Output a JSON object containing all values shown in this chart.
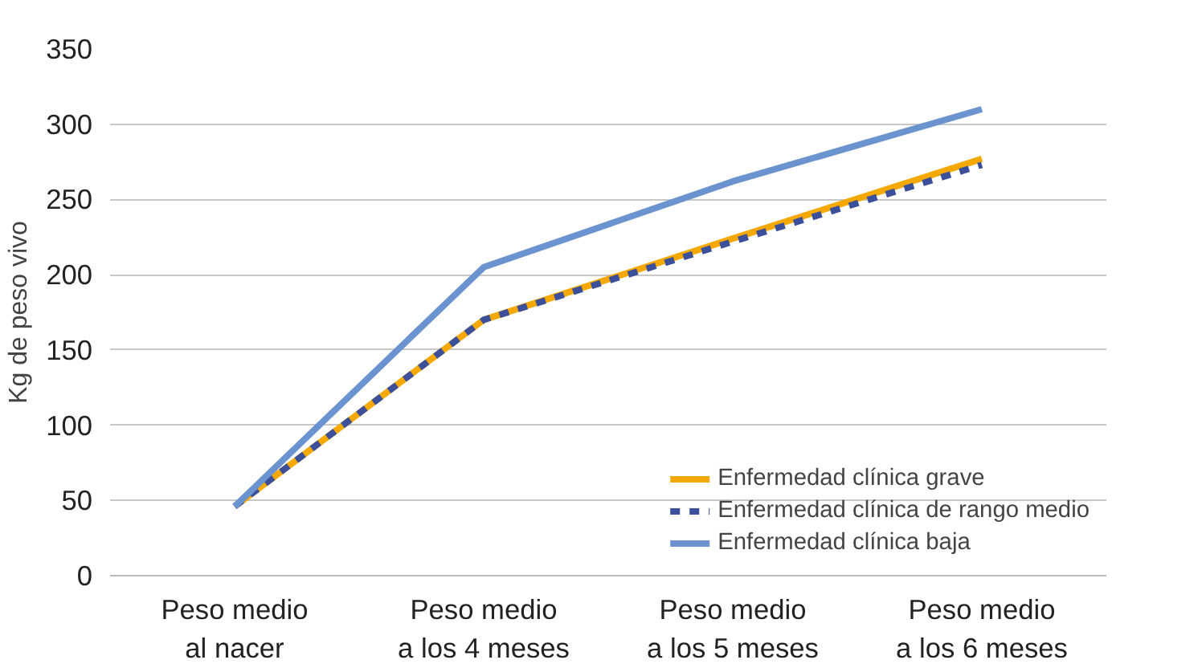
{
  "chart_data": {
    "type": "line",
    "ylabel": "Kg de peso vivo",
    "categories": [
      "Peso medio\nal nacer",
      "Peso medio\na los 4 meses",
      "Peso medio\na los 5 meses",
      "Peso medio\na los 6 meses"
    ],
    "series": [
      {
        "name": "Enfermedad clínica grave",
        "color": "#f5a800",
        "values": [
          46,
          170,
          224,
          277
        ]
      },
      {
        "name": "Enfermedad clínica de rango medio",
        "color": "#3b4f9a",
        "values": [
          46,
          170,
          222,
          273
        ],
        "line_style": "dashed"
      },
      {
        "name": "Enfermedad clínica baja",
        "color": "#6a93d0",
        "values": [
          46,
          205,
          262,
          310
        ]
      }
    ],
    "ylim": [
      0,
      350
    ],
    "yticks": [
      0,
      50,
      100,
      150,
      200,
      250,
      300,
      350
    ],
    "grid": "y",
    "legend": "bottom right",
    "line_style": "solid",
    "marker": "none"
  }
}
